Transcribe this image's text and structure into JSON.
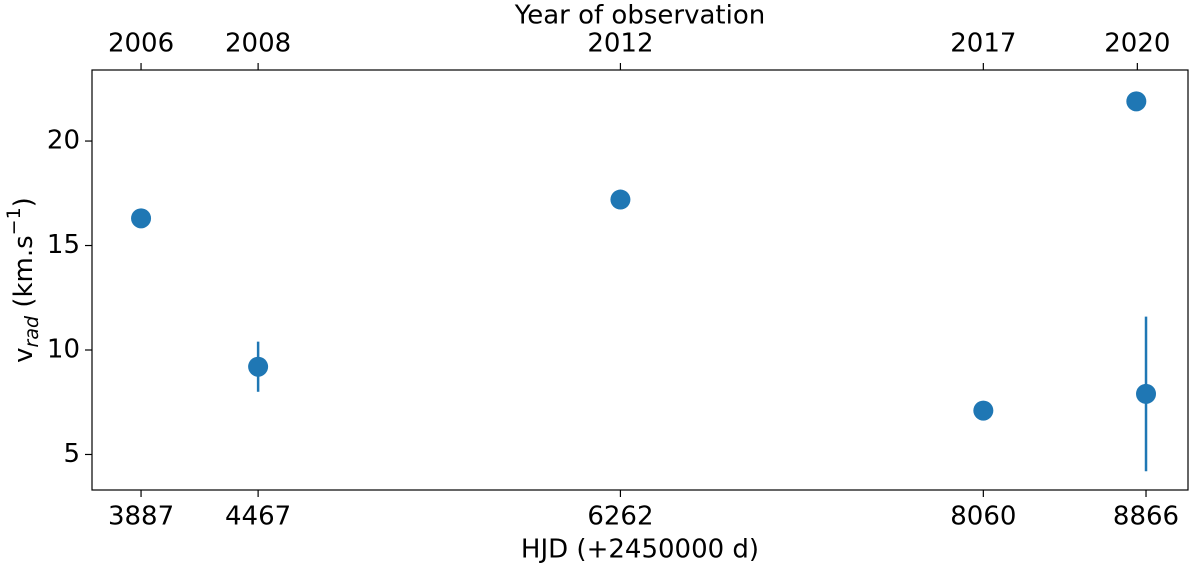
{
  "chart_data": {
    "type": "scatter",
    "x_label": "HJD (+2450000 d)",
    "top_label": "Year of observation",
    "y_label": {
      "base": "v",
      "sub": "rad",
      "unit": " (km.s",
      "sup": "−1",
      "close": ")"
    },
    "x": [
      3887,
      4467,
      6262,
      8060,
      8818,
      8866
    ],
    "series": [
      {
        "color": "#1f77b4",
        "values": [
          16.3,
          9.2,
          17.2,
          7.1,
          21.9,
          7.9
        ],
        "errors": [
          null,
          1.2,
          null,
          null,
          null,
          3.7
        ]
      }
    ],
    "xlim": [
      3644,
      9074
    ],
    "xticks": [
      3887,
      4467,
      6262,
      8060,
      8866
    ],
    "top_ticks": [
      {
        "value": 3887,
        "label": "2006"
      },
      {
        "value": 4467,
        "label": "2008"
      },
      {
        "value": 6262,
        "label": "2012"
      },
      {
        "value": 8060,
        "label": "2017"
      },
      {
        "value": 8823,
        "label": "2020"
      }
    ],
    "ylim": [
      3.3,
      23.4
    ],
    "yticks": [
      5,
      10,
      15,
      20
    ]
  }
}
